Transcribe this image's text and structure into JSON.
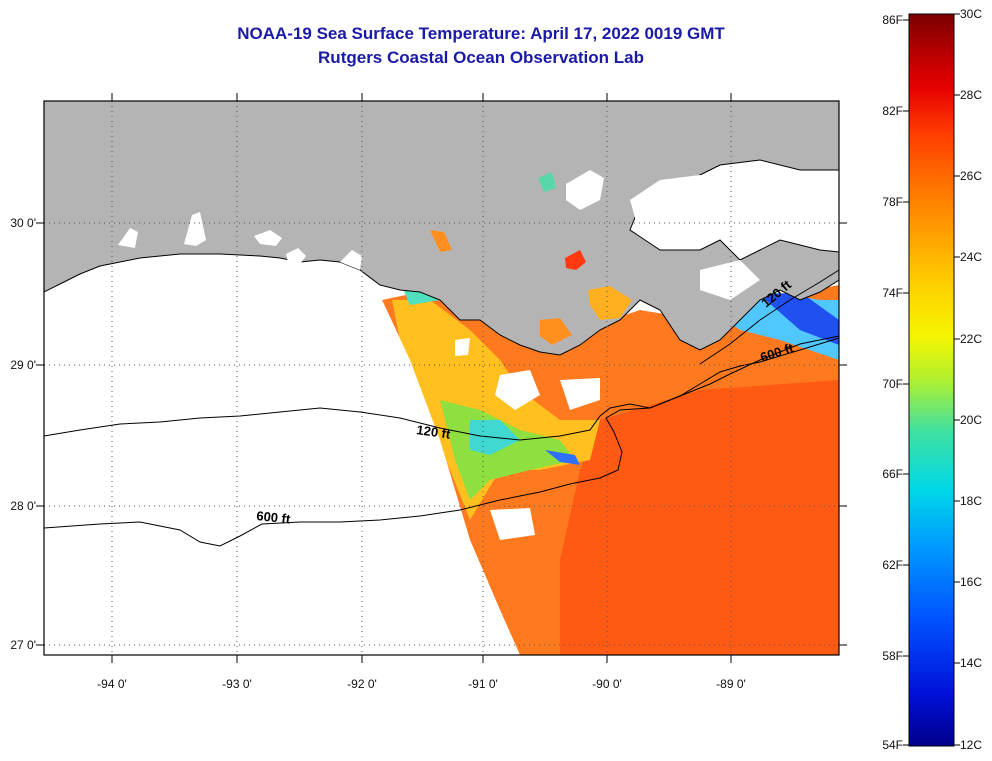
{
  "title_line1": "NOAA-19 Sea Surface Temperature:  April 17, 2022 0019 GMT",
  "title_line2": "Rutgers Coastal Ocean Observation Lab",
  "lat_labels": [
    "30 0'",
    "29 0'",
    "28 0'",
    "27 0'"
  ],
  "lon_labels": [
    "-94 0'",
    "-93 0'",
    "-92 0'",
    "-91 0'",
    "-90 0'",
    "-89 0'"
  ],
  "contour_labels": {
    "c120_west": "120 ft",
    "c600_west": "600 ft",
    "c600_east": "600 ft",
    "c120_east": "120 ft"
  },
  "colorbar": {
    "fahrenheit": [
      "86F",
      "82F",
      "78F",
      "74F",
      "70F",
      "66F",
      "62F",
      "58F",
      "54F"
    ],
    "celsius": [
      "30C",
      "28C",
      "26C",
      "24C",
      "22C",
      "20C",
      "18C",
      "16C",
      "14C",
      "12C"
    ],
    "colors": [
      "#7a0000",
      "#b40000",
      "#e60000",
      "#ff3a00",
      "#ff7000",
      "#ffa000",
      "#ffd000",
      "#f5f500",
      "#b0f030",
      "#40e0a0",
      "#00d8e8",
      "#0098ff",
      "#0050ff",
      "#0010d8",
      "#00008a"
    ]
  },
  "colors": {
    "land": "#b4b4b4",
    "warm_sst": "#ff7a1e",
    "title": "#1a1aa8"
  }
}
